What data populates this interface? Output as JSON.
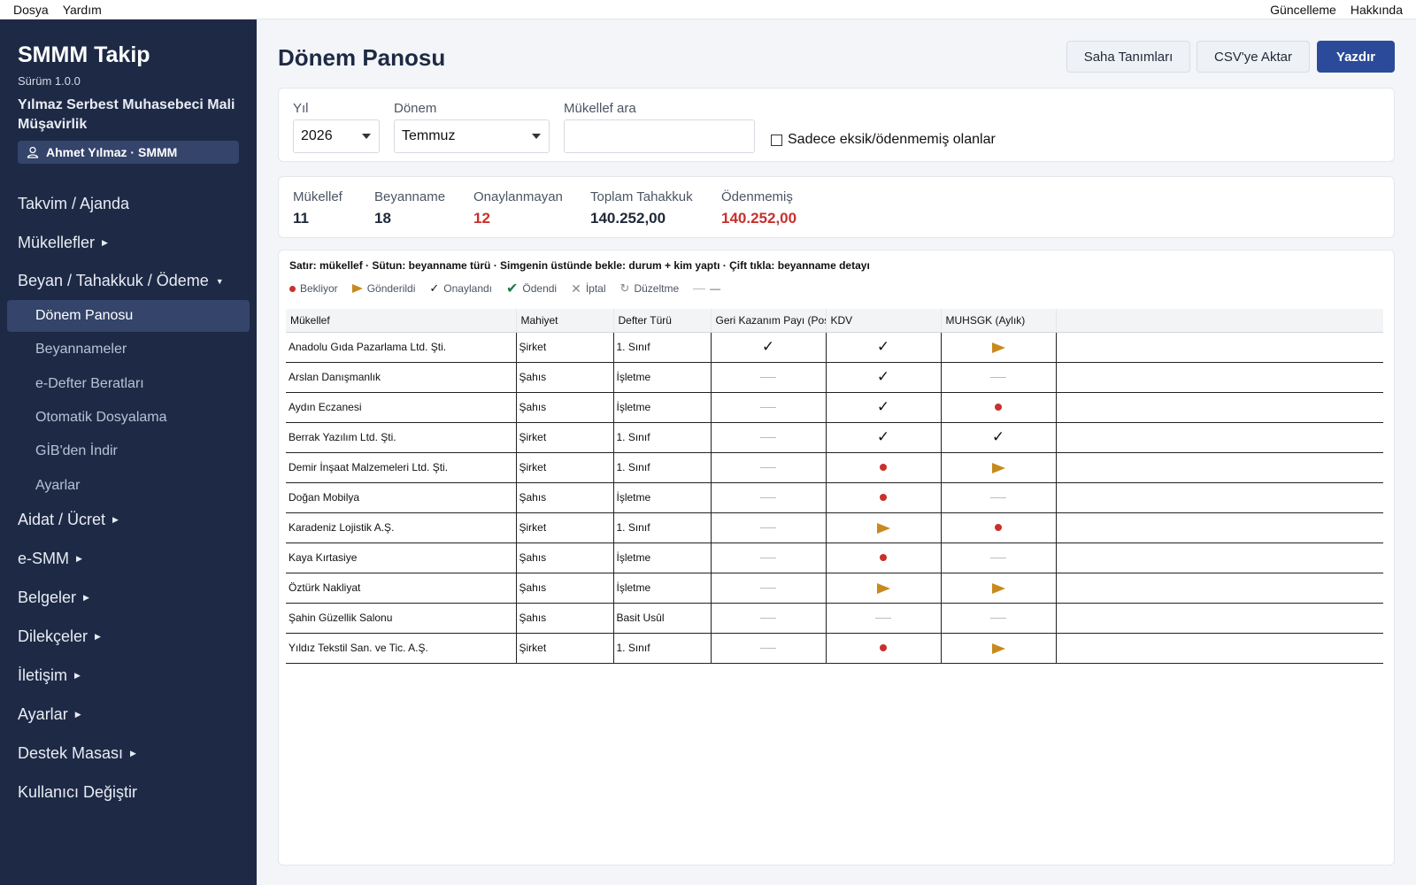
{
  "menubar": {
    "file": "Dosya",
    "help": "Yardım",
    "update": "Güncelleme",
    "about": "Hakkında"
  },
  "sidebar": {
    "app_title": "SMMM Takip",
    "version": "Sürüm 1.0.0",
    "firm": "Yılmaz Serbest Muhasebeci Mali Müşavirlik",
    "user": "Ahmet Yılmaz · SMMM",
    "items": [
      {
        "label": "Takvim / Ajanda"
      },
      {
        "label": "Mükellefler"
      },
      {
        "label": "Beyan / Tahakkuk / Ödeme"
      },
      {
        "label": "Aidat / Ücret"
      },
      {
        "label": "e-SMM"
      },
      {
        "label": "Belgeler"
      },
      {
        "label": "Dilekçeler"
      },
      {
        "label": "İletişim"
      },
      {
        "label": "Ayarlar"
      },
      {
        "label": "Destek Masası"
      },
      {
        "label": "Kullanıcı Değiştir"
      }
    ],
    "subitems": [
      {
        "label": "Dönem Panosu"
      },
      {
        "label": "Beyannameler"
      },
      {
        "label": "e-Defter Beratları"
      },
      {
        "label": "Otomatik Dosyalama"
      },
      {
        "label": "GİB'den İndir"
      },
      {
        "label": "Ayarlar"
      }
    ]
  },
  "main": {
    "title": "Dönem Panosu",
    "buttons": {
      "fields": "Saha Tanımları",
      "csv": "CSV'ye Aktar",
      "print": "Yazdır"
    },
    "filters": {
      "year_label": "Yıl",
      "year_value": "2026",
      "period_label": "Dönem",
      "period_value": "Temmuz",
      "search_label": "Mükellef ara",
      "search_value": "",
      "only_missing": "Sadece eksik/ödenmemiş olanlar"
    },
    "stats": [
      {
        "label": "Mükellef",
        "value": "11"
      },
      {
        "label": "Beyanname",
        "value": "18"
      },
      {
        "label": "Onaylanmayan",
        "value": "12"
      },
      {
        "label": "Toplam Tahakkuk",
        "value": "140.252,00"
      },
      {
        "label": "Ödenmemiş",
        "value": "140.252,00"
      }
    ],
    "hint": "Satır: mükellef · Sütun: beyanname türü · Simgenin üstünde bekle: durum + kim yaptı · Çift tıkla: beyanname detayı",
    "legend": [
      {
        "icon": "dot",
        "label": "Bekliyor"
      },
      {
        "icon": "arrow",
        "label": "Gönderildi"
      },
      {
        "icon": "check",
        "label": "Onaylandı"
      },
      {
        "icon": "check-bold",
        "label": "Ödendi"
      },
      {
        "icon": "cross",
        "label": "İptal"
      },
      {
        "icon": "redo",
        "label": "Düzeltme"
      },
      {
        "icon": "dash",
        "label": "—"
      }
    ],
    "columns": [
      "Mükellef",
      "Mahiyet",
      "Defter Türü",
      "Geri Kazanım Payı (Poş",
      "KDV",
      "MUHSGK (Aylık)"
    ],
    "rows": [
      {
        "name": "Anadolu Gıda Pazarlama Ltd. Şti.",
        "type": "Şirket",
        "book": "1. Sınıf",
        "gkp": "check",
        "kdv": "check",
        "muh": "arrow"
      },
      {
        "name": "Arslan Danışmanlık",
        "type": "Şahıs",
        "book": "İşletme",
        "gkp": "dash",
        "kdv": "check",
        "muh": "dash"
      },
      {
        "name": "Aydın Eczanesi",
        "type": "Şahıs",
        "book": "İşletme",
        "gkp": "dash",
        "kdv": "check",
        "muh": "dot"
      },
      {
        "name": "Berrak Yazılım Ltd. Şti.",
        "type": "Şirket",
        "book": "1. Sınıf",
        "gkp": "dash",
        "kdv": "check",
        "muh": "check"
      },
      {
        "name": "Demir İnşaat Malzemeleri Ltd. Şti.",
        "type": "Şirket",
        "book": "1. Sınıf",
        "gkp": "dash",
        "kdv": "dot",
        "muh": "arrow"
      },
      {
        "name": "Doğan Mobilya",
        "type": "Şahıs",
        "book": "İşletme",
        "gkp": "dash",
        "kdv": "dot",
        "muh": "dash"
      },
      {
        "name": "Karadeniz Lojistik A.Ş.",
        "type": "Şirket",
        "book": "1. Sınıf",
        "gkp": "dash",
        "kdv": "arrow",
        "muh": "dot"
      },
      {
        "name": "Kaya Kırtasiye",
        "type": "Şahıs",
        "book": "İşletme",
        "gkp": "dash",
        "kdv": "dot",
        "muh": "dash"
      },
      {
        "name": "Öztürk Nakliyat",
        "type": "Şahıs",
        "book": "İşletme",
        "gkp": "dash",
        "kdv": "arrow",
        "muh": "arrow"
      },
      {
        "name": "Şahin Güzellik Salonu",
        "type": "Şahıs",
        "book": "Basit Usûl",
        "gkp": "dash",
        "kdv": "dash",
        "muh": "dash"
      },
      {
        "name": "Yıldız Tekstil San. ve Tic. A.Ş.",
        "type": "Şirket",
        "book": "1. Sınıf",
        "gkp": "dash",
        "kdv": "dot",
        "muh": "arrow"
      }
    ]
  },
  "colors": {
    "sidebar": "#1e2a45",
    "accent": "#2b4a9a",
    "danger": "#c8302c",
    "sent": "#c88a1e",
    "paid": "#1f7a4a"
  }
}
